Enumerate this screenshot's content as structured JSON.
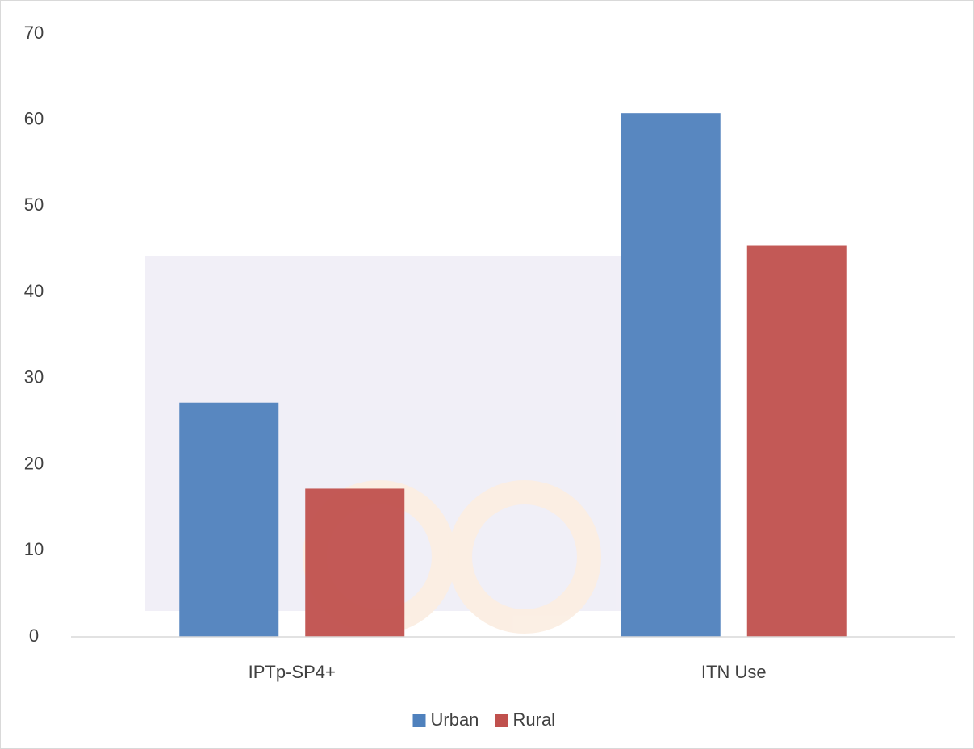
{
  "chart_data": {
    "type": "bar",
    "categories": [
      "IPTp-SP4+",
      "ITN Use"
    ],
    "series": [
      {
        "name": "Urban",
        "color": "#4f81bd",
        "values": [
          27.2,
          60.8
        ]
      },
      {
        "name": "Rural",
        "color": "#c0504d",
        "values": [
          17.2,
          45.4
        ]
      }
    ],
    "ylim": [
      0,
      70
    ],
    "yticks": [
      0,
      10,
      20,
      30,
      40,
      50,
      60,
      70
    ],
    "grid": false,
    "legend": "bottom"
  }
}
